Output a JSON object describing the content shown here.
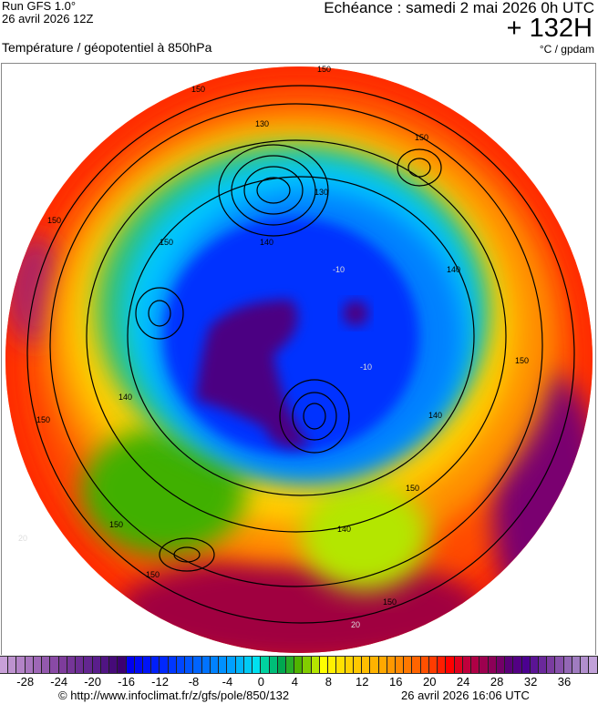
{
  "header": {
    "run": "Run GFS 1.0°",
    "run_date": "26 avril 2026 12Z",
    "valid_time": "Echéance : samedi 2 mai 2026 0h UTC",
    "lead_time": "+ 132H",
    "parameter": "Température / géopotentiel à 850hPa",
    "units": "°C / gpdam"
  },
  "map": {
    "projection": "polar stereographic, north pole",
    "contour_labels": [
      "150",
      "150",
      "150",
      "150",
      "150",
      "150",
      "150",
      "150",
      "140",
      "140",
      "140",
      "140",
      "130",
      "130",
      "140",
      "150",
      "150",
      "150"
    ],
    "isotherm_labels": [
      "-10",
      "-10",
      "20",
      "20"
    ]
  },
  "colorbar": {
    "min": -31,
    "max": 40,
    "step": 1,
    "tick_labels": [
      "-28",
      "-24",
      "-20",
      "-16",
      "-12",
      "-8",
      "-4",
      "0",
      "4",
      "8",
      "12",
      "16",
      "20",
      "24",
      "28",
      "32",
      "36"
    ],
    "color_stops": [
      [
        -31,
        "#c8a0d8"
      ],
      [
        -24,
        "#7e3c9c"
      ],
      [
        -20,
        "#5a1e8c"
      ],
      [
        -17,
        "#3c0070"
      ],
      [
        -16,
        "#0000f0"
      ],
      [
        -12,
        "#0028ff"
      ],
      [
        -8,
        "#0064ff"
      ],
      [
        -4,
        "#00a0ff"
      ],
      [
        -1,
        "#00e0f0"
      ],
      [
        0,
        "#00d2a0"
      ],
      [
        2,
        "#00a850"
      ],
      [
        4,
        "#50b400"
      ],
      [
        6,
        "#b4e600"
      ],
      [
        7,
        "#ffff00"
      ],
      [
        10,
        "#ffd200"
      ],
      [
        14,
        "#ffa800"
      ],
      [
        17,
        "#ff7800"
      ],
      [
        20,
        "#ff3c00"
      ],
      [
        22,
        "#ff0000"
      ],
      [
        24,
        "#c0003c"
      ],
      [
        27,
        "#8c0058"
      ],
      [
        29,
        "#5a0078"
      ],
      [
        31,
        "#4b0090"
      ],
      [
        34,
        "#7a3ca0"
      ],
      [
        37,
        "#a07cc0"
      ],
      [
        40,
        "#d2b4e6"
      ]
    ]
  },
  "footer": {
    "url": "© http://www.infoclimat.fr/z/gfs/pole/850/132",
    "generated": "26 avril 2026 16:06 UTC"
  }
}
